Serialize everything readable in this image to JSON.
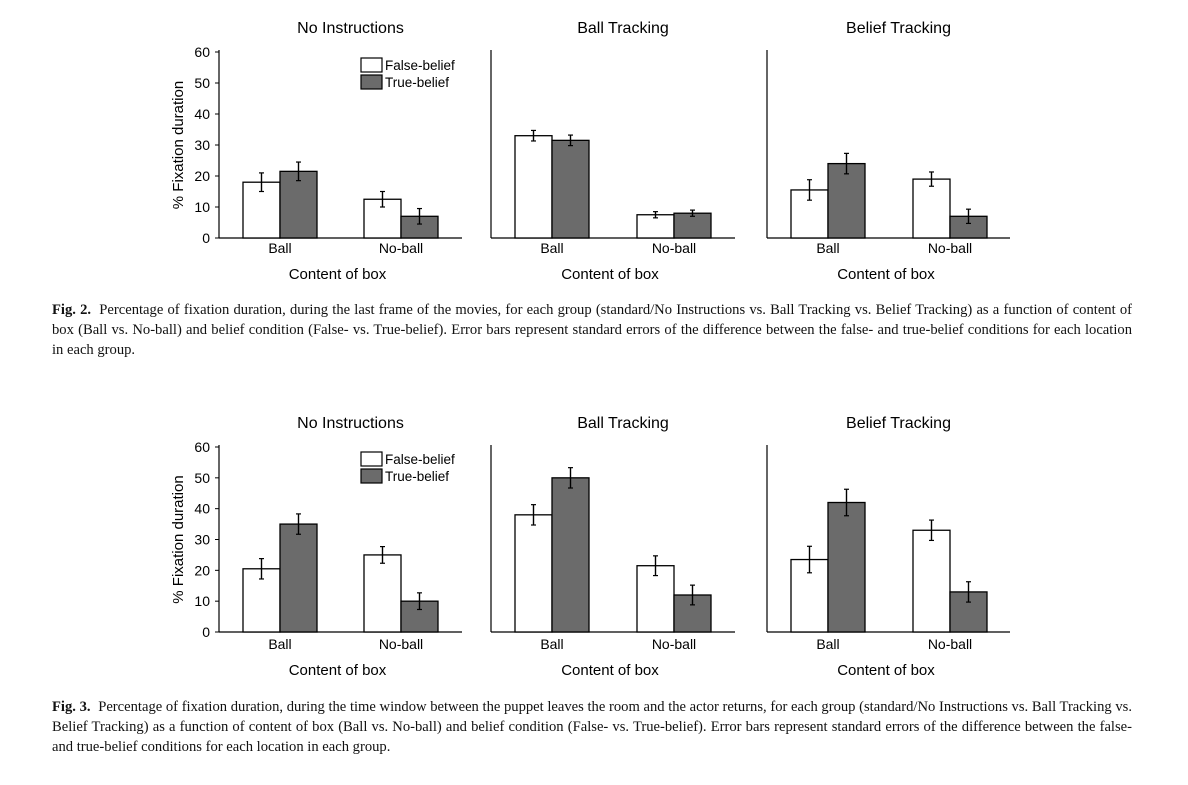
{
  "legend": {
    "false_belief": "False-belief",
    "true_belief": "True-belief"
  },
  "colors": {
    "false_belief_fill": "#ffffff",
    "true_belief_fill": "#6b6b6b",
    "stroke": "#000000"
  },
  "chart_data": [
    {
      "figure": "Fig. 2.",
      "type": "bar",
      "ylabel": "% Fixation duration",
      "ylim": [
        0,
        60
      ],
      "yticks": [
        0,
        10,
        20,
        30,
        40,
        50,
        60
      ],
      "panels": [
        {
          "title": "No Instructions",
          "xlabel": "Content of box",
          "categories": [
            "Ball",
            "No-ball"
          ],
          "series": [
            {
              "name": "False-belief",
              "values": [
                18,
                12.5
              ],
              "errors": [
                3,
                2.5
              ]
            },
            {
              "name": "True-belief",
              "values": [
                21.5,
                7
              ],
              "errors": [
                3,
                2.5
              ]
            }
          ]
        },
        {
          "title": "Ball Tracking",
          "xlabel": "Content of box",
          "categories": [
            "Ball",
            "No-ball"
          ],
          "series": [
            {
              "name": "False-belief",
              "values": [
                33,
                7.5
              ],
              "errors": [
                1.7,
                1
              ]
            },
            {
              "name": "True-belief",
              "values": [
                31.5,
                8
              ],
              "errors": [
                1.7,
                1
              ]
            }
          ]
        },
        {
          "title": "Belief Tracking",
          "xlabel": "Content of box",
          "categories": [
            "Ball",
            "No-ball"
          ],
          "series": [
            {
              "name": "False-belief",
              "values": [
                15.5,
                19
              ],
              "errors": [
                3.3,
                2.3
              ]
            },
            {
              "name": "True-belief",
              "values": [
                24,
                7
              ],
              "errors": [
                3.3,
                2.3
              ]
            }
          ]
        }
      ]
    },
    {
      "figure": "Fig. 3.",
      "type": "bar",
      "ylabel": "% Fixation duration",
      "ylim": [
        0,
        60
      ],
      "yticks": [
        0,
        10,
        20,
        30,
        40,
        50,
        60
      ],
      "panels": [
        {
          "title": "No Instructions",
          "xlabel": "Content of box",
          "categories": [
            "Ball",
            "No-ball"
          ],
          "series": [
            {
              "name": "False-belief",
              "values": [
                20.5,
                25
              ],
              "errors": [
                3.3,
                2.7
              ]
            },
            {
              "name": "True-belief",
              "values": [
                35,
                10
              ],
              "errors": [
                3.3,
                2.7
              ]
            }
          ]
        },
        {
          "title": "Ball Tracking",
          "xlabel": "Content of box",
          "categories": [
            "Ball",
            "No-ball"
          ],
          "series": [
            {
              "name": "False-belief",
              "values": [
                38,
                21.5
              ],
              "errors": [
                3.3,
                3.2
              ]
            },
            {
              "name": "True-belief",
              "values": [
                50,
                12
              ],
              "errors": [
                3.3,
                3.2
              ]
            }
          ]
        },
        {
          "title": "Belief Tracking",
          "xlabel": "Content of box",
          "categories": [
            "Ball",
            "No-ball"
          ],
          "series": [
            {
              "name": "False-belief",
              "values": [
                23.5,
                33
              ],
              "errors": [
                4.3,
                3.3
              ]
            },
            {
              "name": "True-belief",
              "values": [
                42,
                13
              ],
              "errors": [
                4.3,
                3.3
              ]
            }
          ]
        }
      ]
    }
  ],
  "captions": [
    {
      "label": "Fig. 2.",
      "text": "Percentage of fixation duration, during the last frame of the movies, for each group (standard/No Instructions vs. Ball Tracking vs. Belief Tracking) as a function of content of box (Ball vs. No-ball) and belief condition (False- vs. True-belief). Error bars represent standard errors of the difference between the false- and true-belief conditions for each location in each group."
    },
    {
      "label": "Fig. 3.",
      "text": "Percentage of fixation duration, during the time window between the puppet leaves the room and the actor returns, for each group (standard/No Instructions vs. Ball Tracking vs. Belief Tracking) as a function of content of box (Ball vs. No-ball) and belief condition (False- vs. True-belief). Error bars represent standard errors of the difference between the false- and true-belief conditions for each location in each group."
    }
  ]
}
